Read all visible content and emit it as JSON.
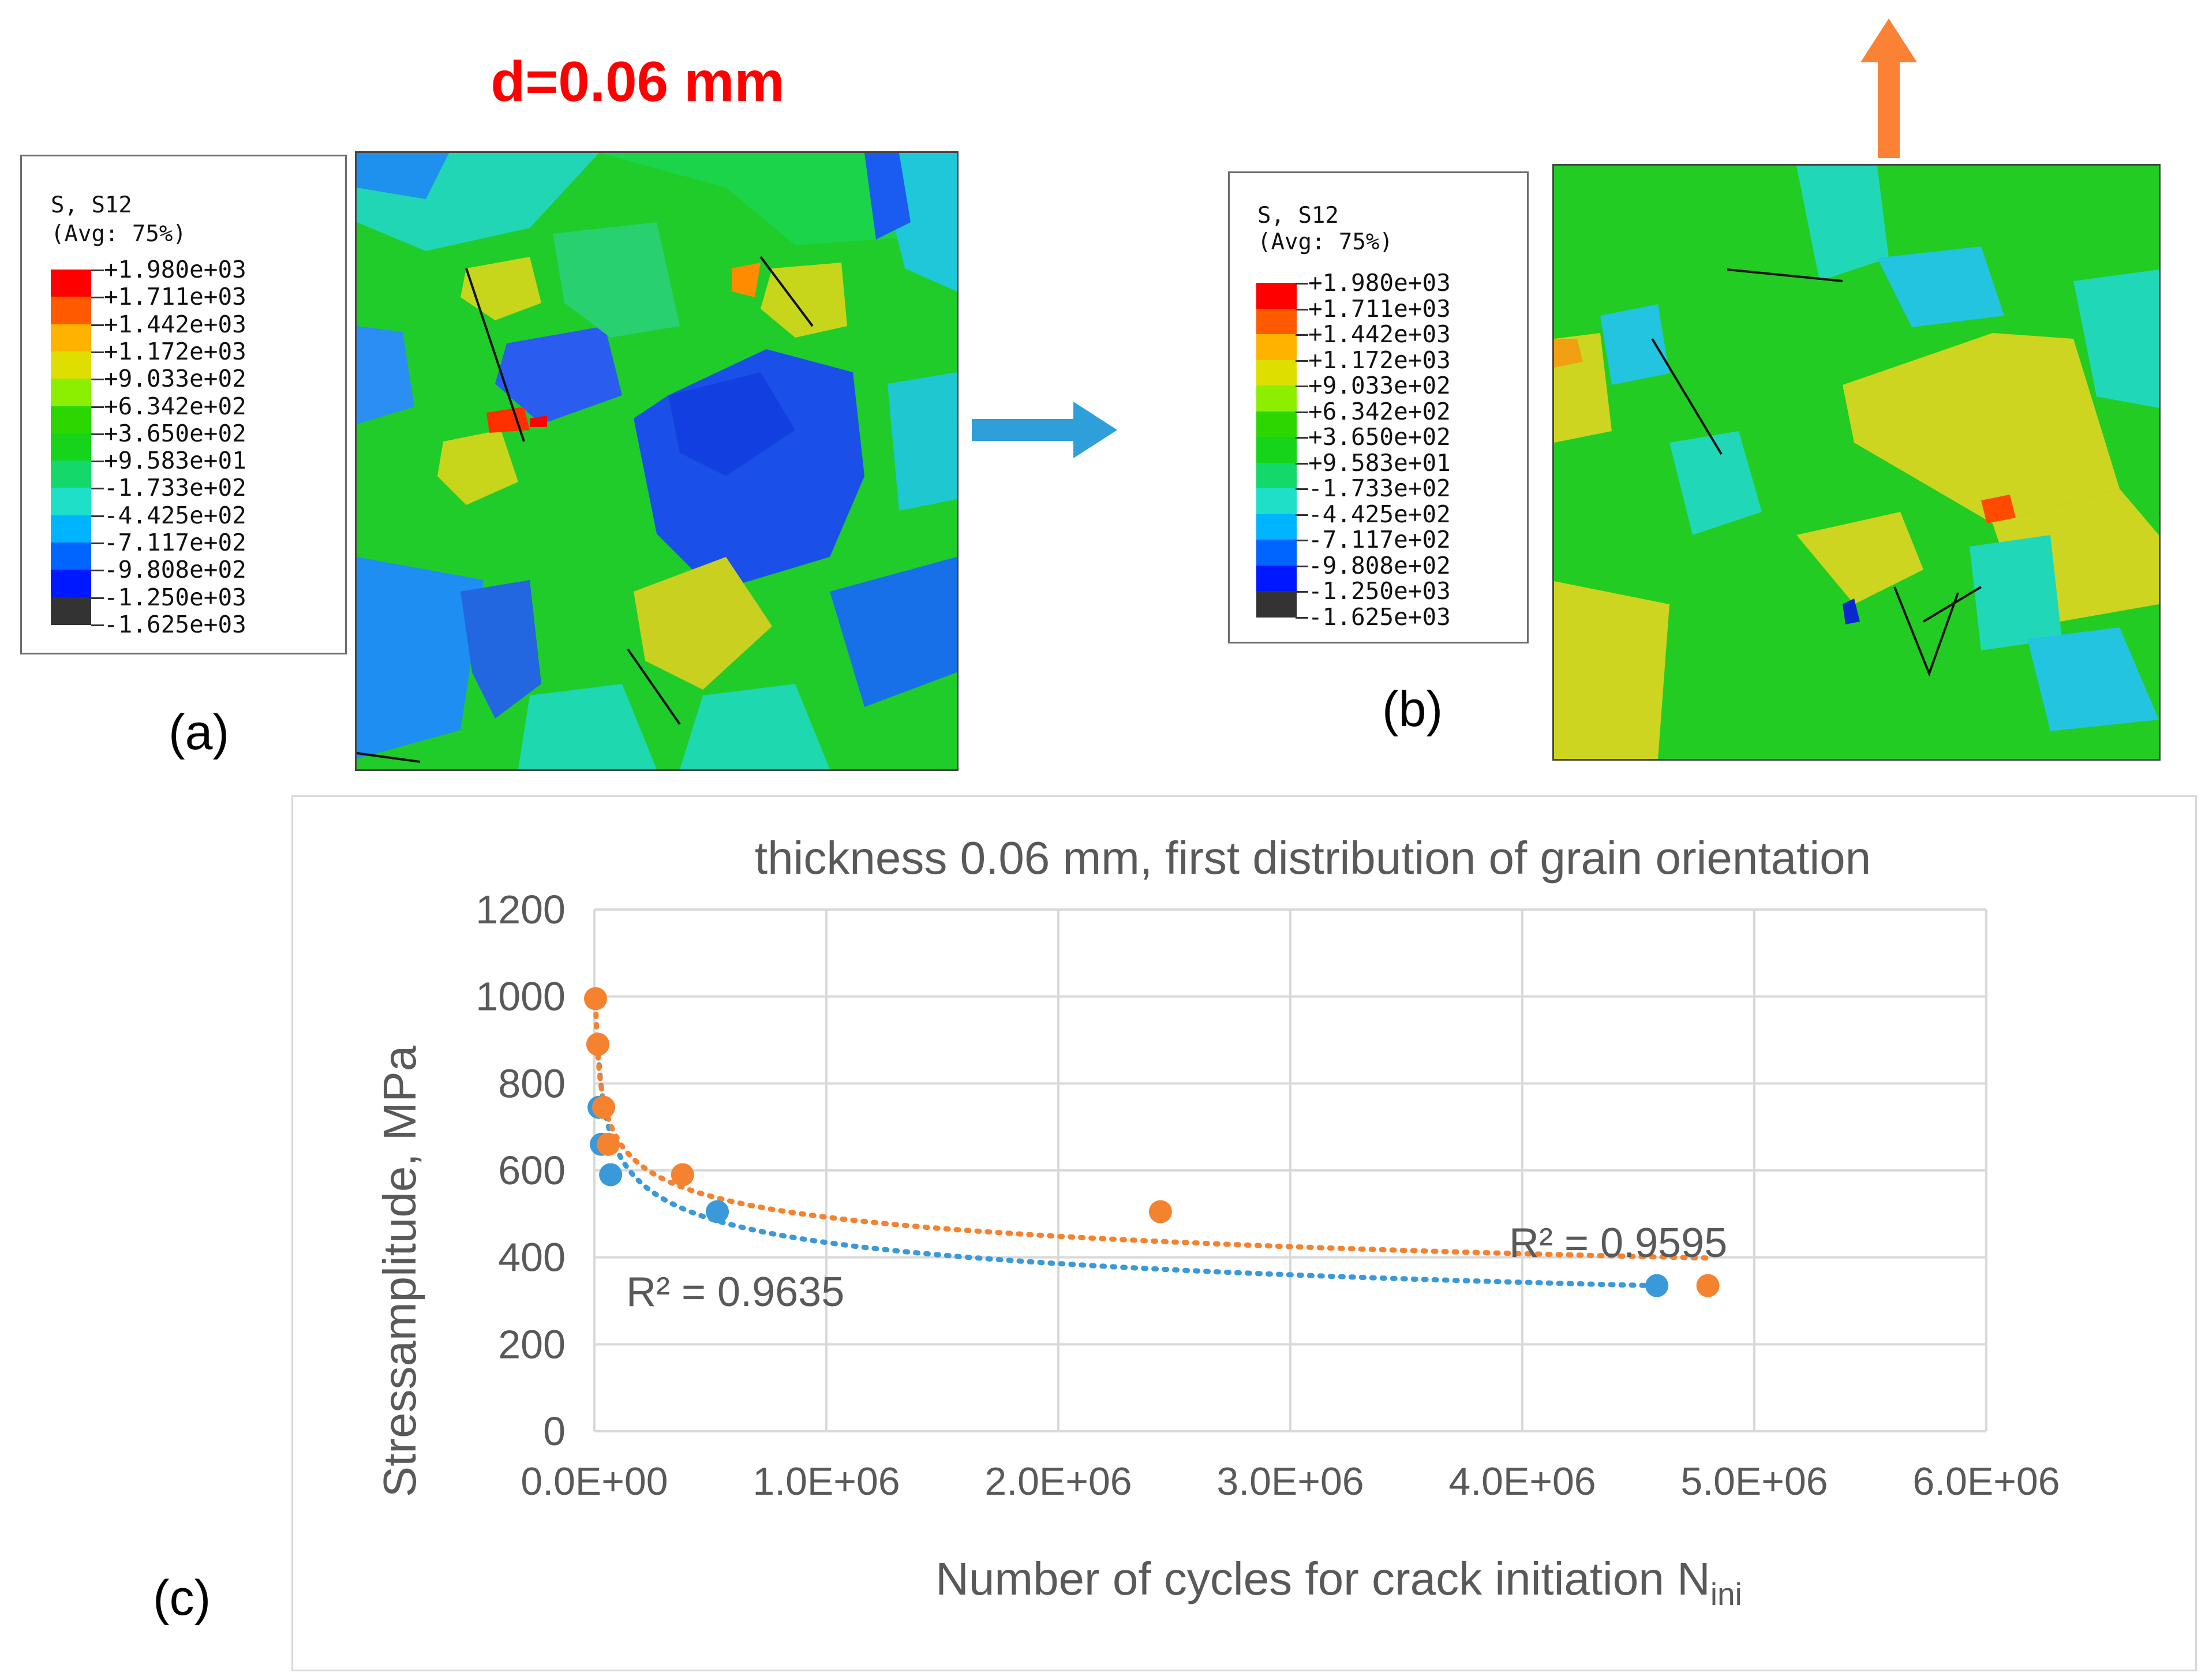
{
  "heading": "d=0.06 mm",
  "panel_labels": {
    "a": "(a)",
    "b": "(b)",
    "c": "(c)"
  },
  "legend": {
    "title_line1": "S, S12",
    "title_line2": "(Avg: 75%)",
    "values": [
      "+1.980e+03",
      "+1.711e+03",
      "+1.442e+03",
      "+1.172e+03",
      "+9.033e+02",
      "+6.342e+02",
      "+3.650e+02",
      "+9.583e+01",
      "-1.733e+02",
      "-4.425e+02",
      "-7.117e+02",
      "-9.808e+02",
      "-1.250e+03",
      "-1.625e+03"
    ],
    "colors": [
      "#ff0000",
      "#ff5a00",
      "#ffb200",
      "#dede00",
      "#8cef00",
      "#2cd700",
      "#16d41a",
      "#14d86a",
      "#1ee0c8",
      "#00b4ff",
      "#0064ff",
      "#0018ff",
      "#333333"
    ]
  },
  "arrows": {
    "right_color": "#2e9fd9",
    "up_color": "#fb8135"
  },
  "chart_data": {
    "type": "scatter",
    "title": "thickness 0.06 mm, first distribution of grain orientation",
    "xlabel": "Number of cycles for crack initiation N",
    "xlabel_subscript": "ini",
    "ylabel": "Stressamplitude, MPa",
    "xlim": [
      0,
      6000000
    ],
    "ylim": [
      0,
      1200
    ],
    "x_ticks": [
      0,
      1000000,
      2000000,
      3000000,
      4000000,
      5000000,
      6000000
    ],
    "x_tick_labels": [
      "0.0E+00",
      "1.0E+06",
      "2.0E+06",
      "3.0E+06",
      "4.0E+06",
      "5.0E+06",
      "6.0E+06"
    ],
    "y_ticks": [
      0,
      200,
      400,
      600,
      800,
      1000,
      1200
    ],
    "y_tick_labels": [
      "0",
      "200",
      "400",
      "600",
      "800",
      "1000",
      "1200"
    ],
    "grid": true,
    "series": [
      {
        "name": "series-blue",
        "color": "#3a9ad9",
        "points": [
          [
            15000,
            890
          ],
          [
            20000,
            745
          ],
          [
            30000,
            660
          ],
          [
            70000,
            590
          ],
          [
            530000,
            505
          ],
          [
            4580000,
            335
          ]
        ],
        "trendline": {
          "type": "power",
          "a": 4610,
          "b": -0.171,
          "x_from": 15000,
          "x_to": 4580000
        },
        "r2_label": "R² = 0.9635"
      },
      {
        "name": "series-orange",
        "color": "#f5822f",
        "points": [
          [
            5000,
            995
          ],
          [
            15000,
            890
          ],
          [
            40000,
            745
          ],
          [
            60000,
            660
          ],
          [
            380000,
            590
          ],
          [
            2440000,
            505
          ],
          [
            4800000,
            335
          ]
        ],
        "trendline": {
          "type": "power",
          "a": 3180,
          "b": -0.135,
          "x_from": 5000,
          "x_to": 4800000
        },
        "r2_label": "R² = 0.9595"
      }
    ]
  }
}
